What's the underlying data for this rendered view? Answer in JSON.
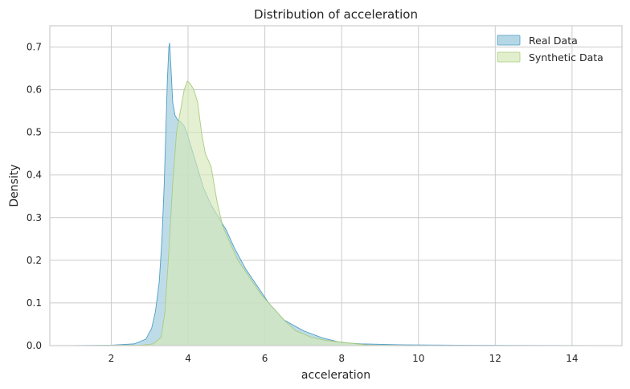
{
  "chart_data": {
    "type": "area",
    "title": "Distribution of acceleration",
    "xlabel": "acceleration",
    "ylabel": "Density",
    "xlim": [
      0.4,
      15.3
    ],
    "ylim": [
      0,
      0.75
    ],
    "xticks": [
      2,
      4,
      6,
      8,
      10,
      12,
      14
    ],
    "yticks": [
      0.0,
      0.1,
      0.2,
      0.3,
      0.4,
      0.5,
      0.6,
      0.7
    ],
    "grid": true,
    "legend_position": "top-right",
    "series": [
      {
        "name": "Real Data",
        "fill": "#a8d0e0",
        "stroke": "#4f9ec4",
        "points": [
          [
            0.9,
            0
          ],
          [
            2.0,
            0.001
          ],
          [
            2.6,
            0.004
          ],
          [
            2.9,
            0.015
          ],
          [
            3.05,
            0.04
          ],
          [
            3.15,
            0.08
          ],
          [
            3.25,
            0.15
          ],
          [
            3.32,
            0.25
          ],
          [
            3.38,
            0.38
          ],
          [
            3.42,
            0.5
          ],
          [
            3.46,
            0.62
          ],
          [
            3.5,
            0.7
          ],
          [
            3.52,
            0.71
          ],
          [
            3.55,
            0.66
          ],
          [
            3.6,
            0.57
          ],
          [
            3.66,
            0.54
          ],
          [
            3.72,
            0.53
          ],
          [
            3.8,
            0.525
          ],
          [
            3.9,
            0.515
          ],
          [
            4.0,
            0.49
          ],
          [
            4.2,
            0.43
          ],
          [
            4.4,
            0.37
          ],
          [
            4.6,
            0.33
          ],
          [
            4.8,
            0.3
          ],
          [
            5.0,
            0.27
          ],
          [
            5.2,
            0.23
          ],
          [
            5.5,
            0.18
          ],
          [
            5.8,
            0.14
          ],
          [
            6.1,
            0.1
          ],
          [
            6.5,
            0.06
          ],
          [
            7.0,
            0.035
          ],
          [
            7.5,
            0.018
          ],
          [
            8.0,
            0.007
          ],
          [
            8.5,
            0.004
          ],
          [
            9.5,
            0.002
          ],
          [
            11.0,
            0.001
          ],
          [
            14.7,
            0
          ]
        ]
      },
      {
        "name": "Synthetic Data",
        "fill": "#d6e8b8",
        "stroke": "#a9cc7e",
        "points": [
          [
            1.0,
            0
          ],
          [
            2.8,
            0.001
          ],
          [
            3.1,
            0.004
          ],
          [
            3.3,
            0.02
          ],
          [
            3.4,
            0.08
          ],
          [
            3.5,
            0.22
          ],
          [
            3.6,
            0.38
          ],
          [
            3.7,
            0.5
          ],
          [
            3.8,
            0.55
          ],
          [
            3.9,
            0.6
          ],
          [
            3.98,
            0.62
          ],
          [
            4.05,
            0.615
          ],
          [
            4.15,
            0.6
          ],
          [
            4.25,
            0.57
          ],
          [
            4.35,
            0.5
          ],
          [
            4.45,
            0.45
          ],
          [
            4.6,
            0.42
          ],
          [
            4.75,
            0.34
          ],
          [
            4.9,
            0.28
          ],
          [
            5.1,
            0.24
          ],
          [
            5.3,
            0.2
          ],
          [
            5.6,
            0.16
          ],
          [
            5.9,
            0.12
          ],
          [
            6.2,
            0.09
          ],
          [
            6.5,
            0.06
          ],
          [
            6.8,
            0.035
          ],
          [
            7.2,
            0.02
          ],
          [
            7.6,
            0.012
          ],
          [
            8.0,
            0.008
          ],
          [
            8.4,
            0.004
          ],
          [
            8.7,
            0.001
          ],
          [
            10.0,
            0
          ]
        ]
      }
    ]
  }
}
